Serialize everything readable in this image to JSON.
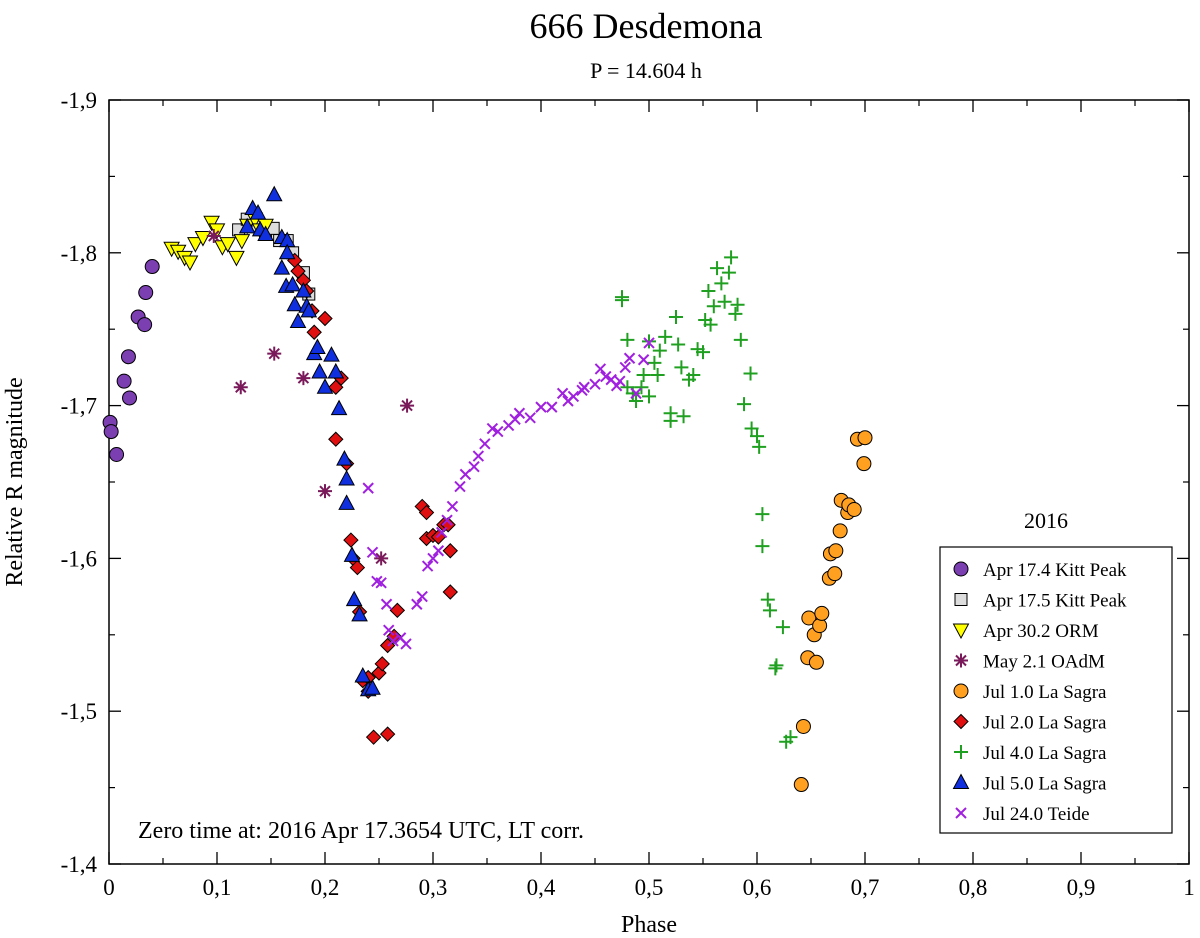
{
  "chart_data": {
    "type": "scatter",
    "title": "666 Desdemona",
    "subtitle": "P = 14.604 h",
    "xlabel": "Phase",
    "ylabel": "Relative R magnitude",
    "xlim": [
      0,
      1
    ],
    "ylim": [
      -1.9,
      -1.4
    ],
    "y_inverted": true,
    "xticks": [
      0,
      0.1,
      0.2,
      0.3,
      0.4,
      0.5,
      0.6,
      0.7,
      0.8,
      0.9,
      1
    ],
    "xtick_labels": [
      "0",
      "0,1",
      "0,2",
      "0,3",
      "0,4",
      "0,5",
      "0,6",
      "0,7",
      "0,8",
      "0,9",
      "1"
    ],
    "yticks": [
      -1.9,
      -1.8,
      -1.7,
      -1.6,
      -1.5,
      -1.4
    ],
    "ytick_labels": [
      "-1,9",
      "-1,8",
      "-1,7",
      "-1,6",
      "-1,5",
      "-1,4"
    ],
    "annotation": "Zero time at: 2016 Apr 17.3654 UTC, LT corr.",
    "legend_title": "2016",
    "legend_position": "bottom-right",
    "series": [
      {
        "name": "Apr 17.4 Kitt Peak",
        "marker": "circle",
        "color": "#7b3fb2",
        "points": [
          [
            0.001,
            -1.689
          ],
          [
            0.002,
            -1.683
          ],
          [
            0.007,
            -1.668
          ],
          [
            0.014,
            -1.716
          ],
          [
            0.018,
            -1.732
          ],
          [
            0.019,
            -1.705
          ],
          [
            0.027,
            -1.758
          ],
          [
            0.033,
            -1.753
          ],
          [
            0.034,
            -1.774
          ],
          [
            0.04,
            -1.791
          ]
        ]
      },
      {
        "name": "Apr 17.5 Kitt Peak",
        "marker": "square",
        "color": "#dddddd",
        "points": [
          [
            0.12,
            -1.815
          ],
          [
            0.128,
            -1.822
          ],
          [
            0.138,
            -1.818
          ],
          [
            0.145,
            -1.812
          ],
          [
            0.152,
            -1.816
          ],
          [
            0.158,
            -1.808
          ],
          [
            0.165,
            -1.808
          ],
          [
            0.17,
            -1.8
          ],
          [
            0.18,
            -1.787
          ],
          [
            0.185,
            -1.773
          ]
        ]
      },
      {
        "name": "Apr 30.2 ORM",
        "marker": "triangle-down",
        "color": "#ffff00",
        "points": [
          [
            0.058,
            -1.803
          ],
          [
            0.064,
            -1.801
          ],
          [
            0.07,
            -1.797
          ],
          [
            0.075,
            -1.794
          ],
          [
            0.08,
            -1.806
          ],
          [
            0.087,
            -1.81
          ],
          [
            0.095,
            -1.82
          ],
          [
            0.1,
            -1.815
          ],
          [
            0.105,
            -1.804
          ],
          [
            0.11,
            -1.806
          ],
          [
            0.118,
            -1.797
          ],
          [
            0.123,
            -1.808
          ],
          [
            0.128,
            -1.818
          ],
          [
            0.135,
            -1.822
          ],
          [
            0.14,
            -1.815
          ],
          [
            0.145,
            -1.818
          ]
        ]
      },
      {
        "name": "May 2.1 OAdM",
        "marker": "asterisk",
        "color": "#7a1a5a",
        "points": [
          [
            0.097,
            -1.811
          ],
          [
            0.122,
            -1.712
          ],
          [
            0.153,
            -1.734
          ],
          [
            0.18,
            -1.718
          ],
          [
            0.2,
            -1.644
          ],
          [
            0.252,
            -1.6
          ],
          [
            0.276,
            -1.7
          ]
        ]
      },
      {
        "name": "Jul 1.0 La Sagra",
        "marker": "circle",
        "color": "#ffa020",
        "points": [
          [
            0.641,
            -1.452
          ],
          [
            0.643,
            -1.49
          ],
          [
            0.647,
            -1.535
          ],
          [
            0.648,
            -1.561
          ],
          [
            0.653,
            -1.55
          ],
          [
            0.655,
            -1.532
          ],
          [
            0.658,
            -1.556
          ],
          [
            0.66,
            -1.564
          ],
          [
            0.667,
            -1.587
          ],
          [
            0.668,
            -1.603
          ],
          [
            0.672,
            -1.59
          ],
          [
            0.673,
            -1.605
          ],
          [
            0.677,
            -1.618
          ],
          [
            0.678,
            -1.638
          ],
          [
            0.684,
            -1.63
          ],
          [
            0.685,
            -1.635
          ],
          [
            0.69,
            -1.632
          ],
          [
            0.693,
            -1.678
          ],
          [
            0.699,
            -1.662
          ],
          [
            0.7,
            -1.679
          ]
        ]
      },
      {
        "name": "Jul 2.0 La Sagra",
        "marker": "diamond",
        "color": "#e01010",
        "points": [
          [
            0.172,
            -1.795
          ],
          [
            0.175,
            -1.788
          ],
          [
            0.18,
            -1.782
          ],
          [
            0.183,
            -1.775
          ],
          [
            0.188,
            -1.762
          ],
          [
            0.19,
            -1.748
          ],
          [
            0.2,
            -1.757
          ],
          [
            0.21,
            -1.712
          ],
          [
            0.215,
            -1.718
          ],
          [
            0.21,
            -1.678
          ],
          [
            0.22,
            -1.662
          ],
          [
            0.224,
            -1.612
          ],
          [
            0.226,
            -1.6
          ],
          [
            0.23,
            -1.594
          ],
          [
            0.232,
            -1.565
          ],
          [
            0.235,
            -1.52
          ],
          [
            0.24,
            -1.513
          ],
          [
            0.24,
            -1.522
          ],
          [
            0.245,
            -1.483
          ],
          [
            0.25,
            -1.525
          ],
          [
            0.253,
            -1.531
          ],
          [
            0.258,
            -1.485
          ],
          [
            0.258,
            -1.543
          ],
          [
            0.264,
            -1.549
          ],
          [
            0.267,
            -1.566
          ],
          [
            0.29,
            -1.634
          ],
          [
            0.294,
            -1.63
          ],
          [
            0.294,
            -1.613
          ],
          [
            0.3,
            -1.615
          ],
          [
            0.305,
            -1.614
          ],
          [
            0.31,
            -1.622
          ],
          [
            0.314,
            -1.622
          ],
          [
            0.316,
            -1.605
          ],
          [
            0.316,
            -1.578
          ]
        ]
      },
      {
        "name": "Jul 4.0 La Sagra",
        "marker": "plus",
        "color": "#20a020",
        "points": [
          [
            0.475,
            -1.771
          ],
          [
            0.475,
            -1.769
          ],
          [
            0.48,
            -1.743
          ],
          [
            0.48,
            -1.712
          ],
          [
            0.485,
            -1.708
          ],
          [
            0.488,
            -1.703
          ],
          [
            0.493,
            -1.712
          ],
          [
            0.495,
            -1.72
          ],
          [
            0.5,
            -1.742
          ],
          [
            0.5,
            -1.706
          ],
          [
            0.505,
            -1.728
          ],
          [
            0.508,
            -1.72
          ],
          [
            0.51,
            -1.736
          ],
          [
            0.515,
            -1.745
          ],
          [
            0.52,
            -1.695
          ],
          [
            0.52,
            -1.69
          ],
          [
            0.525,
            -1.758
          ],
          [
            0.527,
            -1.74
          ],
          [
            0.53,
            -1.725
          ],
          [
            0.532,
            -1.693
          ],
          [
            0.537,
            -1.717
          ],
          [
            0.541,
            -1.72
          ],
          [
            0.545,
            -1.737
          ],
          [
            0.55,
            -1.735
          ],
          [
            0.552,
            -1.756
          ],
          [
            0.555,
            -1.775
          ],
          [
            0.557,
            -1.753
          ],
          [
            0.56,
            -1.765
          ],
          [
            0.563,
            -1.79
          ],
          [
            0.567,
            -1.78
          ],
          [
            0.57,
            -1.768
          ],
          [
            0.574,
            -1.787
          ],
          [
            0.576,
            -1.797
          ],
          [
            0.58,
            -1.76
          ],
          [
            0.582,
            -1.766
          ],
          [
            0.585,
            -1.743
          ],
          [
            0.588,
            -1.701
          ],
          [
            0.594,
            -1.721
          ],
          [
            0.595,
            -1.685
          ],
          [
            0.6,
            -1.68
          ],
          [
            0.602,
            -1.673
          ],
          [
            0.605,
            -1.629
          ],
          [
            0.605,
            -1.608
          ],
          [
            0.61,
            -1.573
          ],
          [
            0.612,
            -1.566
          ],
          [
            0.617,
            -1.528
          ],
          [
            0.618,
            -1.53
          ],
          [
            0.624,
            -1.555
          ],
          [
            0.627,
            -1.48
          ],
          [
            0.631,
            -1.483
          ]
        ]
      },
      {
        "name": "Jul 5.0 La Sagra",
        "marker": "triangle-up",
        "color": "#1030e0",
        "points": [
          [
            0.128,
            -1.817
          ],
          [
            0.133,
            -1.829
          ],
          [
            0.138,
            -1.826
          ],
          [
            0.14,
            -1.815
          ],
          [
            0.145,
            -1.812
          ],
          [
            0.153,
            -1.838
          ],
          [
            0.16,
            -1.81
          ],
          [
            0.165,
            -1.808
          ],
          [
            0.165,
            -1.8
          ],
          [
            0.16,
            -1.79
          ],
          [
            0.164,
            -1.778
          ],
          [
            0.17,
            -1.779
          ],
          [
            0.172,
            -1.766
          ],
          [
            0.175,
            -1.755
          ],
          [
            0.18,
            -1.775
          ],
          [
            0.183,
            -1.765
          ],
          [
            0.185,
            -1.762
          ],
          [
            0.19,
            -1.734
          ],
          [
            0.193,
            -1.738
          ],
          [
            0.195,
            -1.722
          ],
          [
            0.2,
            -1.712
          ],
          [
            0.206,
            -1.733
          ],
          [
            0.21,
            -1.722
          ],
          [
            0.213,
            -1.698
          ],
          [
            0.218,
            -1.665
          ],
          [
            0.22,
            -1.652
          ],
          [
            0.22,
            -1.636
          ],
          [
            0.225,
            -1.602
          ],
          [
            0.227,
            -1.573
          ],
          [
            0.232,
            -1.563
          ],
          [
            0.235,
            -1.523
          ],
          [
            0.24,
            -1.514
          ],
          [
            0.244,
            -1.515
          ]
        ]
      },
      {
        "name": "Jul 24.0 Teide",
        "marker": "cross",
        "color": "#a020e0",
        "points": [
          [
            0.24,
            -1.646
          ],
          [
            0.244,
            -1.604
          ],
          [
            0.248,
            -1.585
          ],
          [
            0.252,
            -1.584
          ],
          [
            0.257,
            -1.57
          ],
          [
            0.259,
            -1.553
          ],
          [
            0.263,
            -1.546
          ],
          [
            0.27,
            -1.548
          ],
          [
            0.275,
            -1.544
          ],
          [
            0.285,
            -1.57
          ],
          [
            0.29,
            -1.575
          ],
          [
            0.295,
            -1.595
          ],
          [
            0.3,
            -1.6
          ],
          [
            0.305,
            -1.605
          ],
          [
            0.308,
            -1.617
          ],
          [
            0.313,
            -1.625
          ],
          [
            0.318,
            -1.634
          ],
          [
            0.325,
            -1.647
          ],
          [
            0.33,
            -1.655
          ],
          [
            0.338,
            -1.66
          ],
          [
            0.342,
            -1.667
          ],
          [
            0.348,
            -1.675
          ],
          [
            0.355,
            -1.685
          ],
          [
            0.36,
            -1.683
          ],
          [
            0.37,
            -1.687
          ],
          [
            0.376,
            -1.691
          ],
          [
            0.38,
            -1.695
          ],
          [
            0.39,
            -1.692
          ],
          [
            0.4,
            -1.699
          ],
          [
            0.41,
            -1.699
          ],
          [
            0.42,
            -1.708
          ],
          [
            0.425,
            -1.703
          ],
          [
            0.43,
            -1.706
          ],
          [
            0.438,
            -1.71
          ],
          [
            0.44,
            -1.712
          ],
          [
            0.45,
            -1.714
          ],
          [
            0.455,
            -1.724
          ],
          [
            0.46,
            -1.719
          ],
          [
            0.465,
            -1.717
          ],
          [
            0.47,
            -1.713
          ],
          [
            0.473,
            -1.716
          ],
          [
            0.478,
            -1.725
          ],
          [
            0.482,
            -1.731
          ],
          [
            0.488,
            -1.708
          ],
          [
            0.495,
            -1.73
          ],
          [
            0.5,
            -1.741
          ]
        ]
      }
    ]
  }
}
